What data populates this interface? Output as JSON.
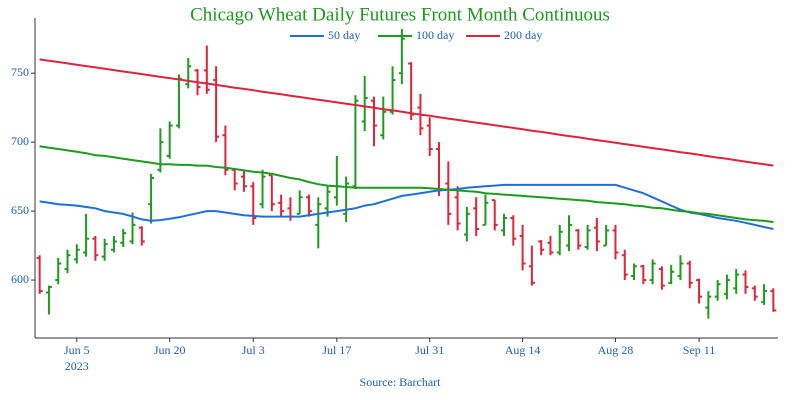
{
  "chart_data": {
    "type": "ohlc",
    "title": "Chicago Wheat Daily Futures Front Month Continuous",
    "source": "Source: Barchart",
    "year_label": "2023",
    "categories": [
      null,
      null,
      null,
      null,
      "Jun 5",
      null,
      null,
      null,
      null,
      null,
      null,
      null,
      null,
      null,
      "Jun 20",
      null,
      null,
      null,
      null,
      null,
      null,
      null,
      null,
      "Jul 3",
      null,
      null,
      null,
      null,
      null,
      null,
      null,
      null,
      "Jul 17",
      null,
      null,
      null,
      null,
      null,
      null,
      null,
      null,
      null,
      "Jul 31",
      null,
      null,
      null,
      null,
      null,
      null,
      null,
      null,
      null,
      "Aug 14",
      null,
      null,
      null,
      null,
      null,
      null,
      null,
      null,
      null,
      "Aug 28",
      null,
      null,
      null,
      null,
      null,
      null,
      null,
      null,
      "Sep 11",
      null,
      null,
      null,
      null,
      null,
      null,
      null,
      null
    ],
    "open": [
      616,
      591,
      600,
      608,
      615,
      620,
      630,
      617,
      622,
      627,
      628,
      638,
      655,
      680,
      690,
      712,
      742,
      752,
      752,
      745,
      705,
      680,
      675,
      668,
      655,
      676,
      656,
      652,
      648,
      660,
      640,
      652,
      660,
      648,
      668,
      715,
      730,
      705,
      722,
      750,
      757,
      725,
      712,
      695,
      670,
      660,
      633,
      652,
      640,
      658,
      636,
      645,
      632,
      610,
      628,
      627,
      620,
      625,
      636,
      624,
      638,
      625,
      636,
      618,
      603,
      610,
      600,
      608,
      598,
      603,
      612,
      600,
      580,
      588,
      590,
      594,
      604,
      594,
      584,
      592
    ],
    "high": [
      618,
      596,
      616,
      622,
      626,
      648,
      632,
      630,
      632,
      637,
      649,
      639,
      677,
      710,
      715,
      749,
      761,
      753,
      770,
      755,
      712,
      681,
      679,
      671,
      680,
      676,
      662,
      660,
      665,
      662,
      660,
      668,
      690,
      675,
      734,
      748,
      733,
      733,
      755,
      782,
      758,
      735,
      718,
      700,
      686,
      668,
      653,
      660,
      662,
      658,
      648,
      647,
      640,
      625,
      629,
      632,
      640,
      647,
      637,
      640,
      645,
      640,
      640,
      622,
      612,
      611,
      615,
      610,
      611,
      618,
      614,
      601,
      592,
      600,
      604,
      608,
      607,
      596,
      597,
      594
    ],
    "low": [
      590,
      575,
      597,
      605,
      612,
      617,
      614,
      614,
      620,
      624,
      626,
      625,
      641,
      678,
      688,
      710,
      739,
      734,
      735,
      700,
      676,
      665,
      664,
      640,
      652,
      650,
      646,
      643,
      648,
      646,
      623,
      646,
      654,
      642,
      666,
      708,
      697,
      702,
      720,
      742,
      716,
      705,
      690,
      661,
      640,
      636,
      628,
      632,
      640,
      636,
      632,
      625,
      607,
      596,
      618,
      618,
      618,
      621,
      622,
      622,
      621,
      625,
      615,
      600,
      600,
      597,
      597,
      593,
      597,
      600,
      594,
      583,
      572,
      585,
      586,
      590,
      590,
      585,
      582,
      577
    ],
    "close": [
      592,
      595,
      612,
      618,
      622,
      630,
      618,
      626,
      628,
      634,
      640,
      628,
      674,
      700,
      712,
      746,
      755,
      740,
      738,
      704,
      680,
      670,
      668,
      645,
      675,
      655,
      650,
      646,
      660,
      650,
      655,
      664,
      668,
      670,
      730,
      732,
      712,
      722,
      745,
      775,
      720,
      710,
      695,
      665,
      648,
      641,
      648,
      637,
      656,
      640,
      645,
      630,
      612,
      598,
      622,
      620,
      635,
      640,
      625,
      636,
      628,
      636,
      620,
      604,
      610,
      600,
      612,
      596,
      606,
      612,
      598,
      588,
      588,
      597,
      600,
      604,
      595,
      588,
      592,
      578
    ],
    "up_color": "#1e9a1e",
    "down_color": "#e0243a",
    "series": [
      {
        "name": "50 day",
        "color": "#1f6fd6",
        "values": [
          657,
          656,
          655,
          654.5,
          654,
          653,
          652,
          650,
          649,
          648,
          646,
          644,
          643,
          643.5,
          644.5,
          645.5,
          647,
          648.5,
          650,
          650,
          649,
          648,
          647,
          646.5,
          646,
          646,
          646,
          646,
          646,
          647,
          648,
          649,
          650,
          651,
          652,
          654,
          655,
          657,
          659,
          661,
          662,
          663,
          664,
          665,
          665.5,
          666,
          667,
          667.5,
          668,
          668.5,
          669,
          669,
          669,
          669,
          669,
          669,
          669,
          669,
          669,
          669,
          669,
          669,
          669,
          667,
          665,
          663,
          660,
          657,
          654,
          651,
          649,
          648,
          646.5,
          645,
          644,
          643,
          641.5,
          640,
          638.5,
          637
        ]
      },
      {
        "name": "100 day",
        "color": "#1e9a1e",
        "values": [
          697,
          696,
          695,
          694,
          693,
          692,
          690.5,
          690,
          689,
          688,
          687,
          686,
          685,
          684,
          684,
          683.5,
          683.5,
          683,
          683,
          682,
          681.5,
          680.5,
          679.5,
          678.5,
          678,
          677,
          675.5,
          674,
          673,
          671,
          669.5,
          668.5,
          668,
          667.5,
          667,
          667,
          667,
          667,
          667,
          667,
          667,
          667,
          666.5,
          666,
          665.5,
          665,
          664.5,
          664,
          663,
          662.5,
          662,
          661.5,
          661,
          660.5,
          660,
          659.5,
          659,
          658.5,
          658,
          657.5,
          656.5,
          656,
          655.5,
          655,
          654,
          653.5,
          652.5,
          652,
          651,
          650,
          649.5,
          648.5,
          648,
          647,
          646,
          645,
          644,
          643.5,
          643,
          642
        ]
      },
      {
        "name": "200 day",
        "color": "#d9263d",
        "values": [
          760,
          759,
          758.1,
          757.1,
          756.1,
          755.1,
          754.2,
          753.2,
          752.2,
          751.2,
          750.3,
          749.3,
          748.3,
          747.3,
          746.4,
          745.4,
          744.4,
          743.4,
          742.5,
          741.5,
          740.5,
          739.5,
          738.6,
          737.6,
          736.6,
          735.6,
          734.7,
          733.7,
          732.7,
          731.7,
          730.8,
          729.8,
          728.8,
          727.8,
          726.9,
          725.9,
          724.9,
          723.9,
          723,
          722,
          721,
          720,
          719.1,
          718.1,
          717.1,
          716.1,
          715.2,
          714.2,
          713.2,
          712.2,
          711.3,
          710.3,
          709.3,
          708.3,
          707.4,
          706.4,
          705.4,
          704.4,
          703.5,
          702.5,
          701.5,
          700.5,
          699.6,
          698.6,
          697.6,
          696.6,
          695.7,
          694.7,
          693.7,
          692.7,
          691.8,
          690.8,
          689.8,
          688.8,
          687.9,
          686.9,
          685.9,
          684.9,
          684,
          683
        ]
      }
    ],
    "ylim": [
      558,
      790
    ],
    "yticks": [
      600,
      650,
      700,
      750
    ],
    "grid": false
  }
}
